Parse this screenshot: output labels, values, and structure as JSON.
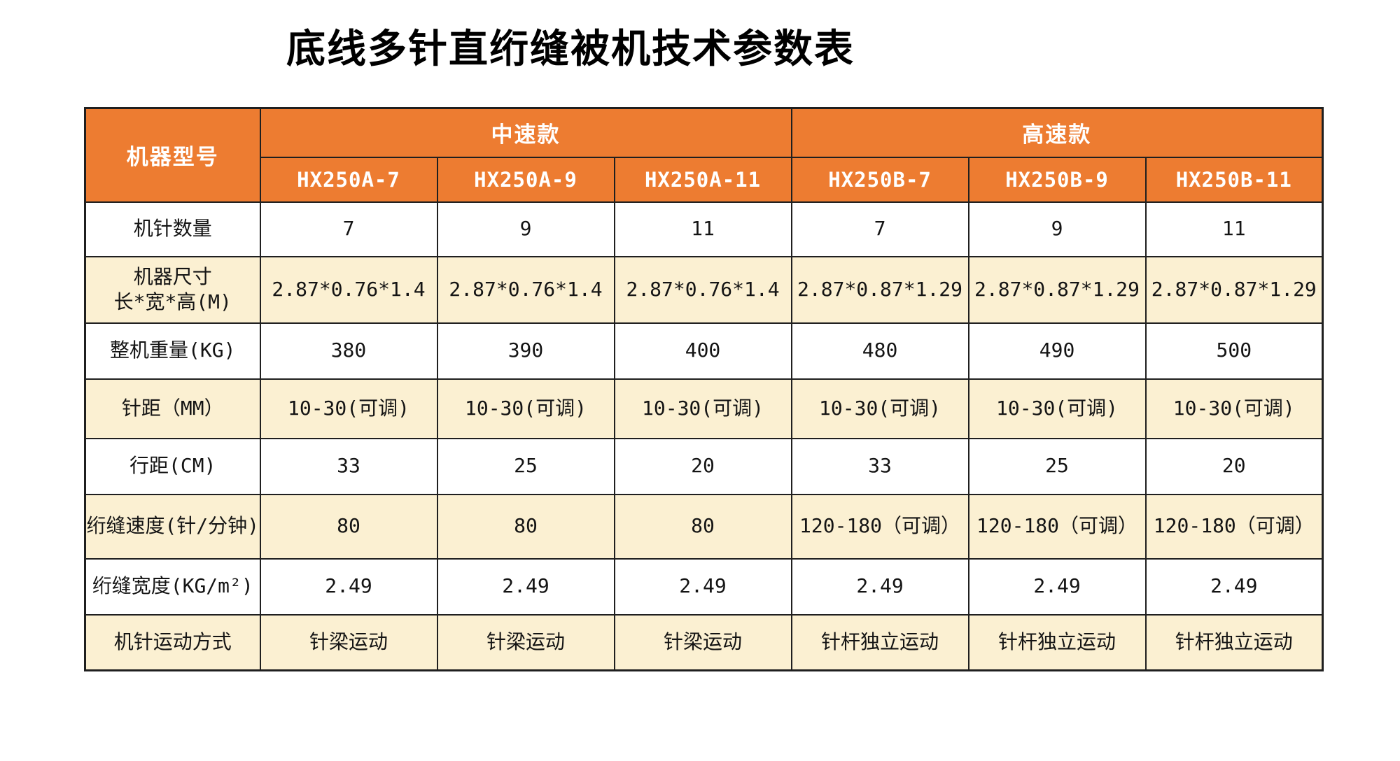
{
  "page_title": "底线多针直绗缝被机技术参数表",
  "colors": {
    "header_bg": "#ED7C31",
    "header_text": "#FFFFFF",
    "stripe_bg": "#FBF0D2",
    "row_bg": "#FFFFFF",
    "border": "#1F1F1F",
    "title_text": "#000000"
  },
  "chart_data": {
    "type": "table",
    "title": "底线多针直绗缝被机技术参数表",
    "corner_header": "机器型号",
    "column_groups": [
      {
        "label": "中速款",
        "models": [
          "HX250A-7",
          "HX250A-9",
          "HX250A-11"
        ]
      },
      {
        "label": "高速款",
        "models": [
          "HX250B-7",
          "HX250B-9",
          "HX250B-11"
        ]
      }
    ],
    "rows": [
      {
        "label": "机针数量",
        "values": [
          "7",
          "9",
          "11",
          "7",
          "9",
          "11"
        ]
      },
      {
        "label": "机器尺寸",
        "label2": "长*宽*高(M)",
        "values": [
          "2.87*0.76*1.4",
          "2.87*0.76*1.4",
          "2.87*0.76*1.4",
          "2.87*0.87*1.29",
          "2.87*0.87*1.29",
          "2.87*0.87*1.29"
        ]
      },
      {
        "label": "整机重量(KG)",
        "values": [
          "380",
          "390",
          "400",
          "480",
          "490",
          "500"
        ]
      },
      {
        "label": "针距（MM）",
        "values": [
          "10-30(可调)",
          "10-30(可调)",
          "10-30(可调)",
          "10-30(可调)",
          "10-30(可调)",
          "10-30(可调)"
        ]
      },
      {
        "label": "行距(CM)",
        "values": [
          "33",
          "25",
          "20",
          "33",
          "25",
          "20"
        ]
      },
      {
        "label": "绗缝速度(针/分钟)",
        "values": [
          "80",
          "80",
          "80",
          "120-180（可调）",
          "120-180（可调）",
          "120-180（可调）"
        ]
      },
      {
        "label": "绗缝宽度(KG/m²)",
        "values": [
          "2.49",
          "2.49",
          "2.49",
          "2.49",
          "2.49",
          "2.49"
        ]
      },
      {
        "label": "机针运动方式",
        "values": [
          "针梁运动",
          "针梁运动",
          "针梁运动",
          "针杆独立运动",
          "针杆独立运动",
          "针杆独立运动"
        ]
      }
    ]
  }
}
